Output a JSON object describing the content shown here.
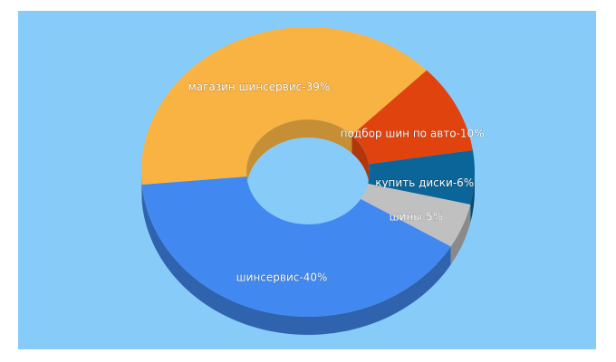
{
  "chart_data": {
    "type": "donut3d",
    "values": [
      40,
      39,
      10,
      6,
      5
    ],
    "value_labels": [
      "шинсервис-40%",
      "магазин шинсервис-39%",
      "подбор шин по авто-10%",
      "купить диски-6%",
      "шины-5%"
    ],
    "colors": [
      "#4189f0",
      "#f9b342",
      "#e0430e",
      "#0b6598",
      "#c0c0c0"
    ]
  }
}
